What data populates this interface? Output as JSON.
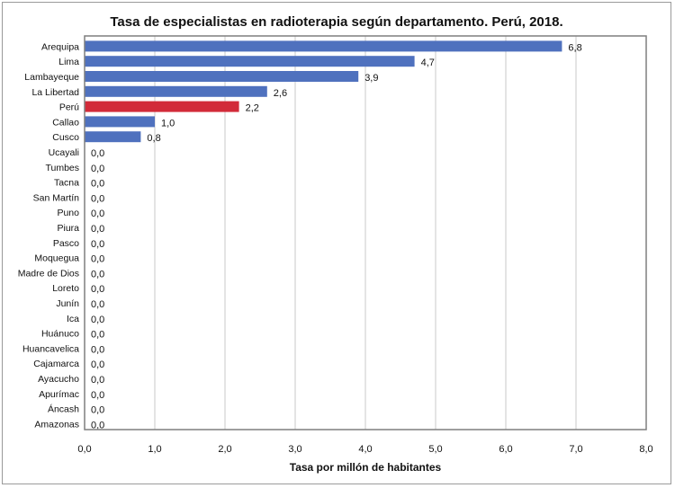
{
  "chart_data": {
    "type": "bar",
    "orientation": "horizontal",
    "title": "Tasa de especialistas en radioterapia según departamento. Perú, 2018.",
    "xlabel": "Tasa por millón de habitantes",
    "ylabel": "",
    "xlim": [
      0,
      8
    ],
    "xticks": [
      "0,0",
      "1,0",
      "2,0",
      "3,0",
      "4,0",
      "5,0",
      "6,0",
      "7,0",
      "8,0"
    ],
    "grid": true,
    "categories": [
      "Arequipa",
      "Lima",
      "Lambayeque",
      "La Libertad",
      "Perú",
      "Callao",
      "Cusco",
      "Ucayali",
      "Tumbes",
      "Tacna",
      "San Martín",
      "Puno",
      "Piura",
      "Pasco",
      "Moquegua",
      "Madre de Dios",
      "Loreto",
      "Junín",
      "Ica",
      "Huánuco",
      "Huancavelica",
      "Cajamarca",
      "Ayacucho",
      "Apurímac",
      "Áncash",
      "Amazonas"
    ],
    "values": [
      6.8,
      4.7,
      3.9,
      2.6,
      2.2,
      1.0,
      0.8,
      0,
      0,
      0,
      0,
      0,
      0,
      0,
      0,
      0,
      0,
      0,
      0,
      0,
      0,
      0,
      0,
      0,
      0,
      0
    ],
    "value_labels": [
      "6,8",
      "4,7",
      "3,9",
      "2,6",
      "2,2",
      "1,0",
      "0,8",
      "0,0",
      "0,0",
      "0,0",
      "0,0",
      "0,0",
      "0,0",
      "0,0",
      "0,0",
      "0,0",
      "0,0",
      "0,0",
      "0,0",
      "0,0",
      "0,0",
      "0,0",
      "0,0",
      "0,0",
      "0,0",
      "0,0"
    ],
    "bar_color": "#4f71be",
    "highlight_category": "Perú",
    "highlight_color": "#d22b39"
  }
}
